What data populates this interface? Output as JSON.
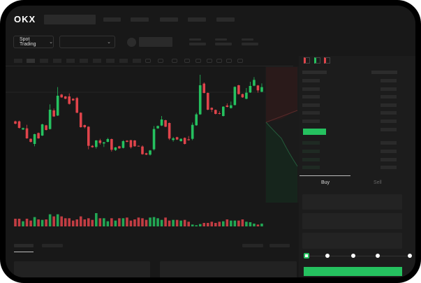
{
  "header": {
    "logo": "OKX",
    "product_selector": "Spot Trading",
    "chevron": "chevron-down-icon"
  },
  "order_form": {
    "tabs": [
      {
        "label": "Buy",
        "active": true
      },
      {
        "label": "Sell",
        "active": false
      }
    ],
    "slider_percent": 0,
    "slider_stops": [
      0,
      25,
      50,
      75,
      100
    ]
  },
  "colors": {
    "up": "#25c15f",
    "down": "#e0444b",
    "background": "#181818",
    "panel": "#1c1c1c"
  },
  "chart_data": {
    "type": "candlestick",
    "candles": [
      [
        185,
        175,
        188,
        172
      ],
      [
        185,
        157,
        188,
        154
      ],
      [
        150,
        156,
        158,
        148
      ],
      [
        155,
        112,
        170,
        110
      ],
      [
        110,
        97,
        112,
        94
      ],
      [
        88,
        130,
        132,
        78
      ],
      [
        135,
        112,
        137,
        110
      ],
      [
        124,
        172,
        175,
        122
      ],
      [
        168,
        148,
        170,
        146
      ],
      [
        152,
        235,
        258,
        150
      ],
      [
        232,
        206,
        240,
        204
      ],
      [
        210,
        295,
        332,
        208
      ],
      [
        300,
        288,
        303,
        286
      ],
      [
        292,
        282,
        294,
        280
      ],
      [
        292,
        260,
        305,
        257
      ],
      [
        282,
        275,
        284,
        273
      ],
      [
        285,
        222,
        290,
        220
      ],
      [
        222,
        160,
        224,
        158
      ],
      [
        169,
        160,
        171,
        155
      ],
      [
        162,
        80,
        164,
        65
      ],
      [
        80,
        74,
        83,
        72
      ],
      [
        75,
        103,
        105,
        68
      ],
      [
        103,
        92,
        110,
        85
      ],
      [
        90,
        95,
        97,
        75
      ],
      [
        97,
        109,
        114,
        95
      ],
      [
        109,
        63,
        111,
        55
      ],
      [
        62,
        73,
        75,
        58
      ],
      [
        78,
        69,
        80,
        67
      ],
      [
        71,
        100,
        104,
        69
      ],
      [
        102,
        97,
        104,
        95
      ],
      [
        104,
        74,
        106,
        68
      ],
      [
        103,
        78,
        105,
        76
      ],
      [
        80,
        78,
        81,
        77
      ],
      [
        77,
        44,
        82,
        42
      ],
      [
        48,
        42,
        50,
        40
      ],
      [
        42,
        60,
        62,
        38
      ],
      [
        65,
        152,
        165,
        60
      ],
      [
        155,
        165,
        167,
        153
      ],
      [
        167,
        193,
        208,
        165
      ],
      [
        190,
        162,
        192,
        160
      ],
      [
        178,
        111,
        180,
        105
      ],
      [
        105,
        112,
        118,
        98
      ],
      [
        117,
        107,
        119,
        105
      ],
      [
        100,
        110,
        112,
        98
      ],
      [
        114,
        88,
        116,
        86
      ],
      [
        108,
        104,
        122,
        102
      ],
      [
        110,
        170,
        180,
        104
      ],
      [
        168,
        215,
        222,
        166
      ],
      [
        215,
        340,
        385,
        213
      ],
      [
        347,
        307,
        352,
        305
      ],
      [
        307,
        235,
        309,
        233
      ],
      [
        243,
        235,
        245,
        225
      ],
      [
        234,
        217,
        236,
        215
      ],
      [
        220,
        217,
        228,
        215
      ],
      [
        208,
        248,
        250,
        206
      ],
      [
        253,
        247,
        262,
        245
      ],
      [
        242,
        254,
        270,
        240
      ],
      [
        255,
        333,
        335,
        253
      ],
      [
        340,
        302,
        342,
        300
      ],
      [
        302,
        288,
        304,
        286
      ],
      [
        282,
        308,
        328,
        280
      ],
      [
        309,
        337,
        355,
        307
      ],
      [
        338,
        363,
        375,
        336
      ],
      [
        339,
        318,
        341,
        308
      ],
      [
        312,
        332,
        348,
        310
      ]
    ],
    "volume": [
      33,
      33,
      22,
      33,
      25,
      40,
      30,
      28,
      30,
      52,
      43,
      52,
      43,
      35,
      35,
      25,
      30,
      43,
      30,
      35,
      28,
      57,
      35,
      35,
      22,
      35,
      25,
      35,
      35,
      38,
      25,
      30,
      38,
      35,
      28,
      38,
      40,
      35,
      28,
      38,
      25,
      28,
      28,
      25,
      28,
      20,
      8,
      5,
      10,
      15,
      15,
      20,
      15,
      20,
      22,
      30,
      25,
      25,
      25,
      30,
      20,
      18,
      12,
      8,
      12
    ]
  }
}
